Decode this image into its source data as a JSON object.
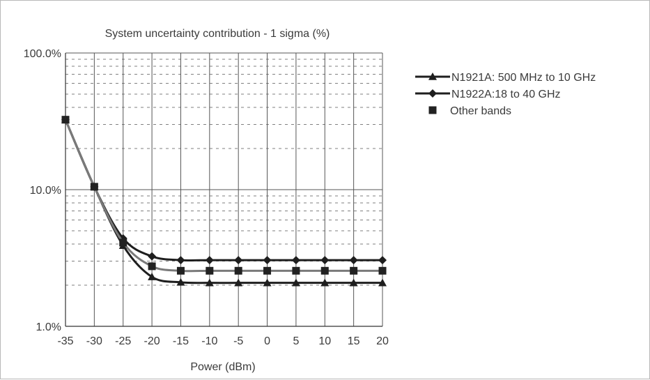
{
  "chart_data": {
    "type": "line",
    "title": "System uncertainty contribution - 1 sigma (%)",
    "xlabel": "Power (dBm)",
    "ylabel": "",
    "x": [
      -35,
      -30,
      -25,
      -20,
      -15,
      -10,
      -5,
      0,
      5,
      10,
      15,
      20
    ],
    "x_tick_labels": [
      "-35",
      "-30",
      "-25",
      "-20",
      "-15",
      "-10",
      "-5",
      "0",
      "5",
      "10",
      "15",
      "20"
    ],
    "xlim": [
      -35,
      20
    ],
    "y_scale": "log",
    "ylim": [
      1,
      100
    ],
    "y_tick_values": [
      1,
      10,
      100
    ],
    "y_tick_labels": [
      "1.0%",
      "10.0%",
      "100.0%"
    ],
    "grid": true,
    "legend_position": "right",
    "series": [
      {
        "name": "N1921A: 500 MHz to 10 GHz",
        "marker": "triangle",
        "color": "#1e1e1e",
        "values": [
          32.5,
          10.5,
          3.9,
          2.3,
          2.1,
          2.08,
          2.08,
          2.08,
          2.08,
          2.08,
          2.08,
          2.08
        ]
      },
      {
        "name": "N1922A:18 to 40 GHz",
        "marker": "diamond",
        "color": "#1e1e1e",
        "values": [
          32.5,
          10.5,
          4.4,
          3.25,
          3.05,
          3.05,
          3.05,
          3.05,
          3.05,
          3.05,
          3.05,
          3.05
        ]
      },
      {
        "name": "Other bands",
        "marker": "square",
        "color": "#7a7a7a",
        "values": [
          32.5,
          10.5,
          4.1,
          2.75,
          2.55,
          2.55,
          2.55,
          2.55,
          2.55,
          2.55,
          2.55,
          2.55
        ]
      }
    ]
  }
}
